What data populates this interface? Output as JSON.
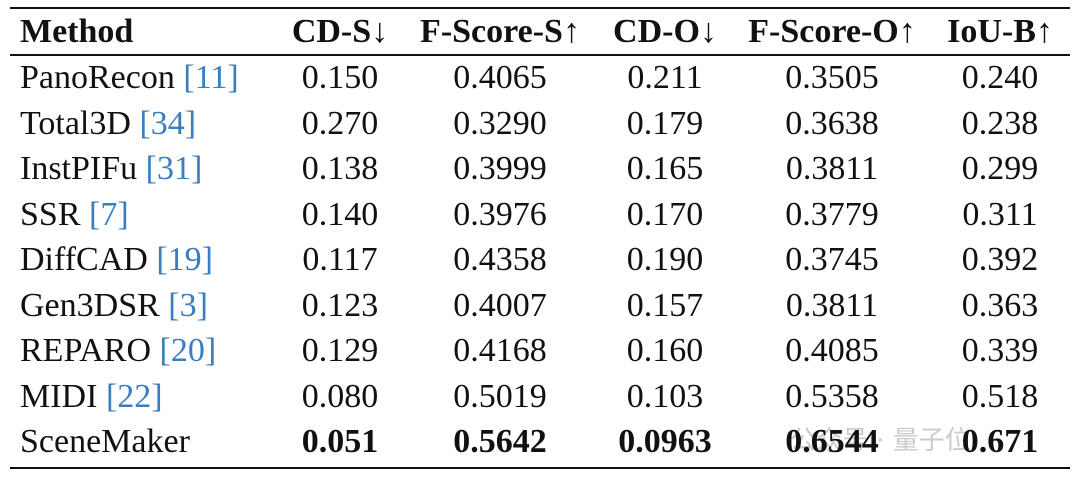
{
  "table": {
    "columns": [
      "Method",
      "CD-S↓",
      "F-Score-S↑",
      "CD-O↓",
      "F-Score-O↑",
      "IoU-B↑"
    ],
    "rows": [
      {
        "method": "PanoRecon",
        "cite": "[11]",
        "values": [
          "0.150",
          "0.4065",
          "0.211",
          "0.3505",
          "0.240"
        ]
      },
      {
        "method": "Total3D",
        "cite": "[34]",
        "values": [
          "0.270",
          "0.3290",
          "0.179",
          "0.3638",
          "0.238"
        ]
      },
      {
        "method": "InstPIFu",
        "cite": "[31]",
        "values": [
          "0.138",
          "0.3999",
          "0.165",
          "0.3811",
          "0.299"
        ]
      },
      {
        "method": "SSR",
        "cite": "[7]",
        "values": [
          "0.140",
          "0.3976",
          "0.170",
          "0.3779",
          "0.311"
        ]
      },
      {
        "method": "DiffCAD",
        "cite": "[19]",
        "values": [
          "0.117",
          "0.4358",
          "0.190",
          "0.3745",
          "0.392"
        ]
      },
      {
        "method": "Gen3DSR",
        "cite": "[3]",
        "values": [
          "0.123",
          "0.4007",
          "0.157",
          "0.3811",
          "0.363"
        ]
      },
      {
        "method": "REPARO",
        "cite": "[20]",
        "values": [
          "0.129",
          "0.4168",
          "0.160",
          "0.4085",
          "0.339"
        ]
      },
      {
        "method": "MIDI",
        "cite": "[22]",
        "values": [
          "0.080",
          "0.5019",
          "0.103",
          "0.5358",
          "0.518"
        ]
      },
      {
        "method": "SceneMaker",
        "values": [
          "0.051",
          "0.5642",
          "0.0963",
          "0.6544",
          "0.671"
        ]
      }
    ]
  },
  "watermark": "公众号 · 量子位"
}
